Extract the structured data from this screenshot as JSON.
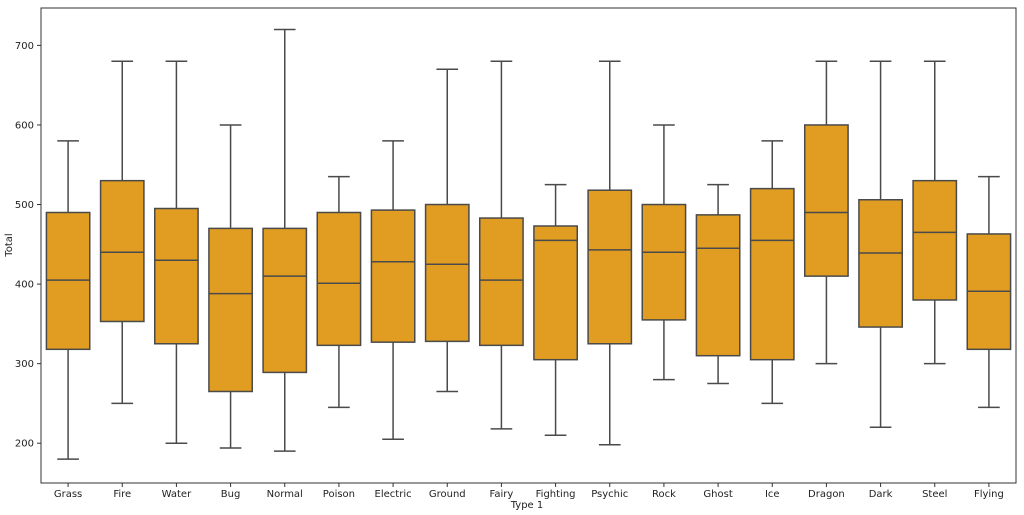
{
  "chart_data": {
    "type": "boxplot",
    "title": "",
    "xlabel": "Type 1",
    "ylabel": "Total",
    "ylim": [
      150,
      747
    ],
    "yticks": [
      200,
      300,
      400,
      500,
      600,
      700
    ],
    "grid": false,
    "legend": "none",
    "box_color": "#E09D22",
    "line_color": "#4a4a4a",
    "categories": [
      "Grass",
      "Fire",
      "Water",
      "Bug",
      "Normal",
      "Poison",
      "Electric",
      "Ground",
      "Fairy",
      "Fighting",
      "Psychic",
      "Rock",
      "Ghost",
      "Ice",
      "Dragon",
      "Dark",
      "Steel",
      "Flying"
    ],
    "boxes": [
      {
        "category": "Grass",
        "whisker_low": 180,
        "q1": 318,
        "median": 405,
        "q3": 490,
        "whisker_high": 580
      },
      {
        "category": "Fire",
        "whisker_low": 250,
        "q1": 353,
        "median": 440,
        "q3": 530,
        "whisker_high": 680
      },
      {
        "category": "Water",
        "whisker_low": 200,
        "q1": 325,
        "median": 430,
        "q3": 495,
        "whisker_high": 680
      },
      {
        "category": "Bug",
        "whisker_low": 194,
        "q1": 265,
        "median": 388,
        "q3": 470,
        "whisker_high": 600
      },
      {
        "category": "Normal",
        "whisker_low": 190,
        "q1": 289,
        "median": 410,
        "q3": 470,
        "whisker_high": 720
      },
      {
        "category": "Poison",
        "whisker_low": 245,
        "q1": 323,
        "median": 401,
        "q3": 490,
        "whisker_high": 535
      },
      {
        "category": "Electric",
        "whisker_low": 205,
        "q1": 327,
        "median": 428,
        "q3": 493,
        "whisker_high": 580
      },
      {
        "category": "Ground",
        "whisker_low": 265,
        "q1": 328,
        "median": 425,
        "q3": 500,
        "whisker_high": 670
      },
      {
        "category": "Fairy",
        "whisker_low": 218,
        "q1": 323,
        "median": 405,
        "q3": 483,
        "whisker_high": 680
      },
      {
        "category": "Fighting",
        "whisker_low": 210,
        "q1": 305,
        "median": 455,
        "q3": 473,
        "whisker_high": 525
      },
      {
        "category": "Psychic",
        "whisker_low": 198,
        "q1": 325,
        "median": 443,
        "q3": 518,
        "whisker_high": 680
      },
      {
        "category": "Rock",
        "whisker_low": 280,
        "q1": 355,
        "median": 440,
        "q3": 500,
        "whisker_high": 600
      },
      {
        "category": "Ghost",
        "whisker_low": 275,
        "q1": 310,
        "median": 445,
        "q3": 487,
        "whisker_high": 525
      },
      {
        "category": "Ice",
        "whisker_low": 250,
        "q1": 305,
        "median": 455,
        "q3": 520,
        "whisker_high": 580
      },
      {
        "category": "Dragon",
        "whisker_low": 300,
        "q1": 410,
        "median": 490,
        "q3": 600,
        "whisker_high": 680
      },
      {
        "category": "Dark",
        "whisker_low": 220,
        "q1": 346,
        "median": 439,
        "q3": 506,
        "whisker_high": 680
      },
      {
        "category": "Steel",
        "whisker_low": 300,
        "q1": 380,
        "median": 465,
        "q3": 530,
        "whisker_high": 680
      },
      {
        "category": "Flying",
        "whisker_low": 245,
        "q1": 318,
        "median": 391,
        "q3": 463,
        "whisker_high": 535
      }
    ]
  }
}
